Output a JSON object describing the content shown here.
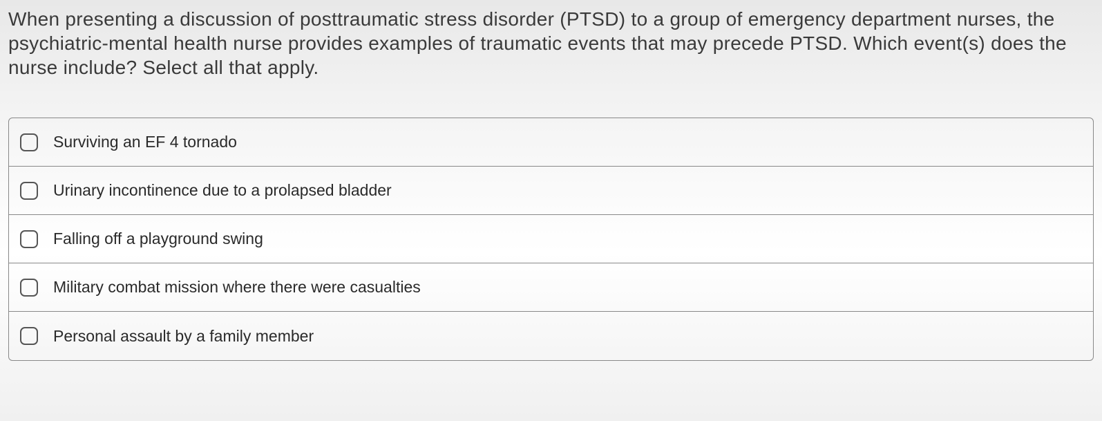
{
  "question": {
    "text": "When presenting a discussion of posttraumatic stress disorder (PTSD) to a group of emergency department nurses, the psychiatric-mental health nurse provides examples of traumatic events that may precede PTSD. Which event(s) does the nurse include? Select all that apply."
  },
  "options": [
    {
      "label": "Surviving an EF 4 tornado",
      "checked": false
    },
    {
      "label": "Urinary incontinence due to a prolapsed bladder",
      "checked": false
    },
    {
      "label": "Falling off a playground swing",
      "checked": false
    },
    {
      "label": "Military combat mission where there were casualties",
      "checked": false
    },
    {
      "label": "Personal assault by a family member",
      "checked": false
    }
  ],
  "styling": {
    "question_fontsize": 28,
    "question_color": "#3a3a3a",
    "option_fontsize": 23,
    "option_color": "#2a2a2a",
    "border_color": "#888888",
    "checkbox_border_color": "#555555",
    "checkbox_border_radius": 7,
    "container_border_radius": 6,
    "background_gradient": [
      "#e8e8e8",
      "#f5f5f5",
      "#ffffff",
      "#f0f0f0"
    ]
  }
}
